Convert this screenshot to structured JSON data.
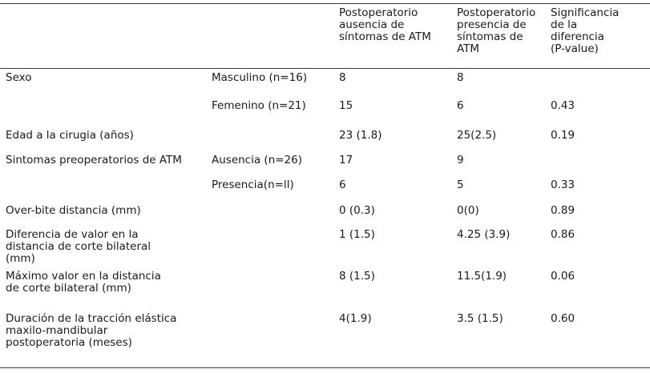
{
  "headers": {
    "col3": "Postoperatorio\nausencia de\nsíntomas de ATM",
    "col4": "Postoperatorio\npresencia de\nsíntomas de\nATM",
    "col5": "Significancia\nde la\ndiferencia\n(P-value)"
  },
  "rows": [
    {
      "label": "Sexo",
      "sub": "Masculino (n=16)",
      "a": "8",
      "b": "8",
      "p": ""
    },
    {
      "label": "",
      "sub": "Femenino (n=21)",
      "a": "15",
      "b": "6",
      "p": "0.43"
    },
    {
      "label": "Edad a la cirugia (años)",
      "sub": "",
      "a": "23 (1.8)",
      "b": "25(2.5)",
      "p": "0.19"
    },
    {
      "label": "Sintomas preoperatorios de ATM",
      "sub": "Ausencia (n=26)",
      "a": "17",
      "b": "9",
      "p": ""
    },
    {
      "label": "",
      "sub": "Presencia(n=ll)",
      "a": "6",
      "b": "5",
      "p": "0.33"
    },
    {
      "label": "Over-bite distancia (mm)",
      "sub": "",
      "a": "0 (0.3)",
      "b": "0(0)",
      "p": "0.89"
    },
    {
      "label": "Diferencia de valor en la\ndistancia de corte bilateral\n(mm)",
      "sub": "",
      "a": "1 (1.5)",
      "b": "4.25 (3.9)",
      "p": "0.86"
    },
    {
      "label": "Máximo valor en la distancia\nde corte bilateral (mm)",
      "sub": "",
      "a": "8 (1.5)",
      "b": "11.5(1.9)",
      "p": "0.06"
    },
    {
      "label": "Duración de la tracción elástica\nmaxilo-mandibular\npostoperatoria (meses)",
      "sub": "",
      "a": "4(1.9)",
      "b": "3.5 (1.5)",
      "p": "0.60"
    }
  ]
}
